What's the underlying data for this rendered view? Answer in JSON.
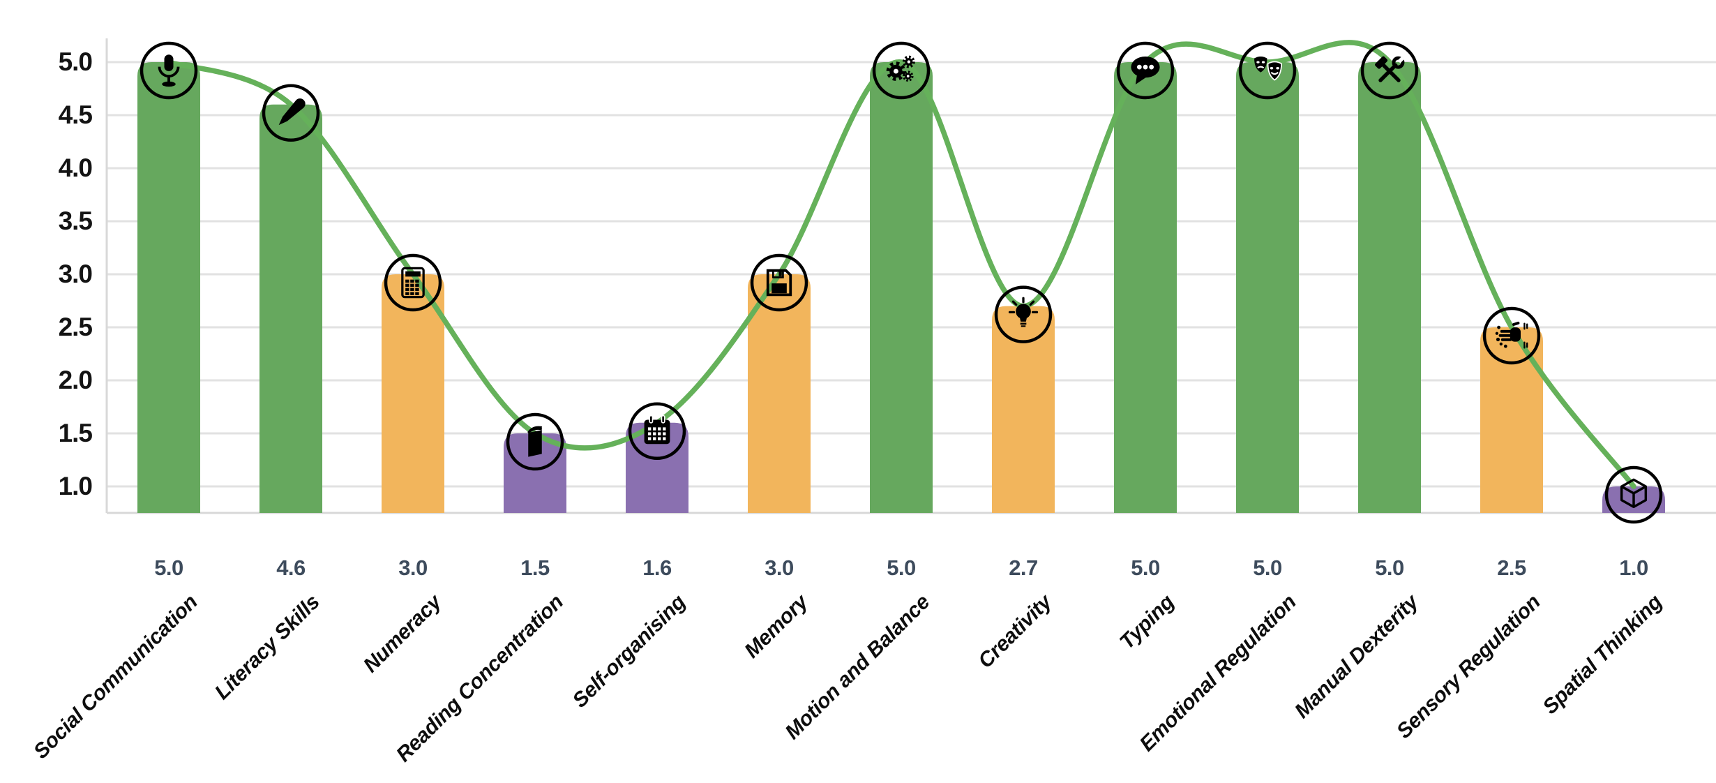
{
  "chart_data": {
    "type": "bar",
    "subtype": "bar-with-trend-line-and-icon-badges",
    "title": "",
    "categories": [
      "Social Communication",
      "Literacy Skills",
      "Numeracy",
      "Reading Concentration",
      "Self-organising",
      "Memory",
      "Motion and Balance",
      "Creativity",
      "Typing",
      "Emotional Regulation",
      "Manual Dexterity",
      "Sensory Regulation",
      "Spatial Thinking"
    ],
    "values": [
      5.0,
      4.6,
      3.0,
      1.5,
      1.6,
      3.0,
      5.0,
      2.7,
      5.0,
      5.0,
      5.0,
      2.5,
      1.0
    ],
    "value_labels": [
      "5.0",
      "4.6",
      "3.0",
      "1.5",
      "1.6",
      "3.0",
      "5.0",
      "2.7",
      "5.0",
      "5.0",
      "5.0",
      "2.5",
      "1.0"
    ],
    "icons": [
      "microphone",
      "pen",
      "calculator",
      "book",
      "calendar",
      "floppy-disk",
      "gears",
      "lightbulb",
      "chat-bubble",
      "theater-masks",
      "hammer-wrench",
      "hand-paint",
      "cube"
    ],
    "bar_colors": [
      "#66a85e",
      "#66a85e",
      "#f2b55c",
      "#8a70b0",
      "#8a70b0",
      "#f2b55c",
      "#66a85e",
      "#f2b55c",
      "#66a85e",
      "#66a85e",
      "#66a85e",
      "#f2b55c",
      "#8a70b0"
    ],
    "color_legend": {
      "high": "#66a85e",
      "medium": "#f2b55c",
      "low": "#8a70b0"
    },
    "trend_line": {
      "color": "#65b15a",
      "style": "smooth-spline",
      "follows": "values"
    },
    "icon_badge": {
      "ring_color": "#000000",
      "glyph_color": "#000000"
    },
    "y_axis": {
      "ticks": [
        5.0,
        4.5,
        4.0,
        3.5,
        3.0,
        2.5,
        2.0,
        1.5,
        1.0
      ],
      "tick_labels": [
        "5.0",
        "4.5",
        "4.0",
        "3.5",
        "3.0",
        "2.5",
        "2.0",
        "1.5",
        "1.0"
      ],
      "range": [
        0.75,
        5.2
      ],
      "grid": true,
      "gridline_color": "#e2e2e2",
      "axis_color": "#d8d8d8"
    },
    "x_axis": {
      "label_rotation_deg": -45,
      "label_color": "#0d0d0d",
      "value_row_color": "#3d4b5c"
    },
    "legend": {
      "visible": false
    },
    "xlabel": "",
    "ylabel": ""
  }
}
